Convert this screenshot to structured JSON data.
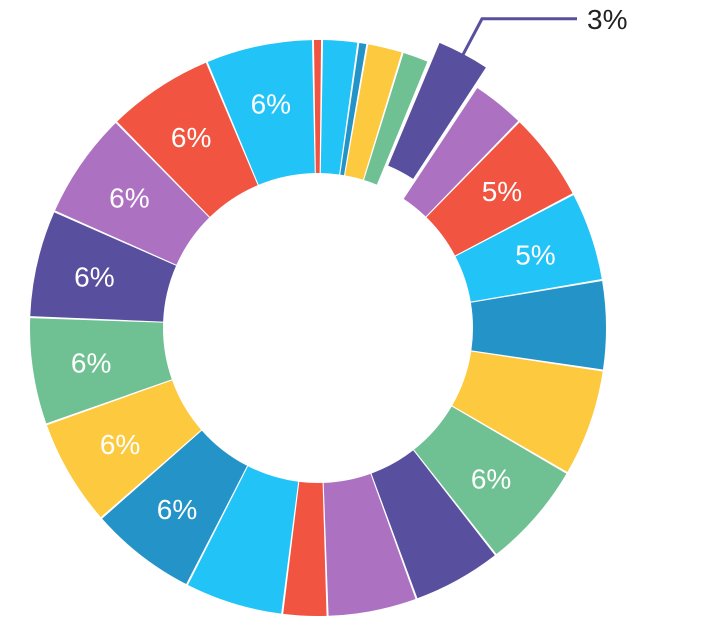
{
  "chart_data": {
    "type": "pie",
    "donut": true,
    "title": "",
    "legend": "none",
    "slices": [
      {
        "value": 0.5,
        "label": "",
        "color": "#F15441"
      },
      {
        "value": 2.0,
        "label": "",
        "color": "#22C3F7"
      },
      {
        "value": 0.5,
        "label": "",
        "color": "#2493C8"
      },
      {
        "value": 2.0,
        "label": "",
        "color": "#FDC93F"
      },
      {
        "value": 1.5,
        "label": "",
        "color": "#6FC193"
      },
      {
        "value": 3.0,
        "label": "3%",
        "color": "#58509E",
        "exploded": true
      },
      {
        "value": 3.0,
        "label": "",
        "color": "#AD71C2"
      },
      {
        "value": 5.0,
        "label": "5%",
        "color": "#F15441"
      },
      {
        "value": 5.0,
        "label": "5%",
        "color": "#22C3F7"
      },
      {
        "value": 5.0,
        "label": "",
        "color": "#2493C8"
      },
      {
        "value": 6.0,
        "label": "",
        "color": "#FDC93F"
      },
      {
        "value": 6.0,
        "label": "6%",
        "color": "#6FC193"
      },
      {
        "value": 5.0,
        "label": "",
        "color": "#58509E"
      },
      {
        "value": 5.0,
        "label": "",
        "color": "#AD71C2"
      },
      {
        "value": 2.5,
        "label": "",
        "color": "#F15441"
      },
      {
        "value": 5.5,
        "label": "",
        "color": "#22C3F7"
      },
      {
        "value": 6.0,
        "label": "6%",
        "color": "#2493C8"
      },
      {
        "value": 6.0,
        "label": "6%",
        "color": "#FDC93F"
      },
      {
        "value": 6.0,
        "label": "6%",
        "color": "#6FC193"
      },
      {
        "value": 6.0,
        "label": "6%",
        "color": "#58509E"
      },
      {
        "value": 6.0,
        "label": "6%",
        "color": "#AD71C2"
      },
      {
        "value": 6.0,
        "label": "6%",
        "color": "#F15441"
      },
      {
        "value": 6.0,
        "label": "6%",
        "color": "#22C3F7"
      }
    ]
  }
}
